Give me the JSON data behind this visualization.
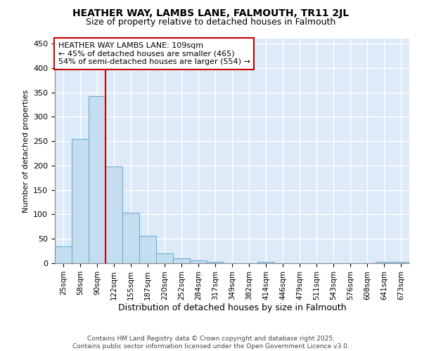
{
  "title1": "HEATHER WAY, LAMBS LANE, FALMOUTH, TR11 2JL",
  "title2": "Size of property relative to detached houses in Falmouth",
  "xlabel": "Distribution of detached houses by size in Falmouth",
  "ylabel": "Number of detached properties",
  "categories": [
    "25sqm",
    "58sqm",
    "90sqm",
    "122sqm",
    "155sqm",
    "187sqm",
    "220sqm",
    "252sqm",
    "284sqm",
    "317sqm",
    "349sqm",
    "382sqm",
    "414sqm",
    "446sqm",
    "479sqm",
    "511sqm",
    "543sqm",
    "576sqm",
    "608sqm",
    "641sqm",
    "673sqm"
  ],
  "values": [
    35,
    255,
    342,
    198,
    103,
    56,
    20,
    10,
    6,
    3,
    0,
    0,
    3,
    0,
    0,
    0,
    0,
    0,
    0,
    3,
    3
  ],
  "bar_color": "#c5ddf0",
  "bar_edge_color": "#6aafd6",
  "vline_x": 2.5,
  "vline_color": "#cc0000",
  "annotation_text": "HEATHER WAY LAMBS LANE: 109sqm\n← 45% of detached houses are smaller (465)\n54% of semi-detached houses are larger (554) →",
  "annotation_box_color": "white",
  "annotation_box_edge": "#cc0000",
  "ylim": [
    0,
    460
  ],
  "yticks": [
    0,
    50,
    100,
    150,
    200,
    250,
    300,
    350,
    400,
    450
  ],
  "footer": "Contains HM Land Registry data © Crown copyright and database right 2025.\nContains public sector information licensed under the Open Government Licence v3.0.",
  "bg_color": "white",
  "plot_bg_color": "#ddeaf7",
  "grid_color": "white",
  "title1_fontsize": 10,
  "title2_fontsize": 9,
  "xlabel_fontsize": 9,
  "ylabel_fontsize": 8,
  "xtick_fontsize": 7.5,
  "ytick_fontsize": 8,
  "footer_fontsize": 6.5
}
